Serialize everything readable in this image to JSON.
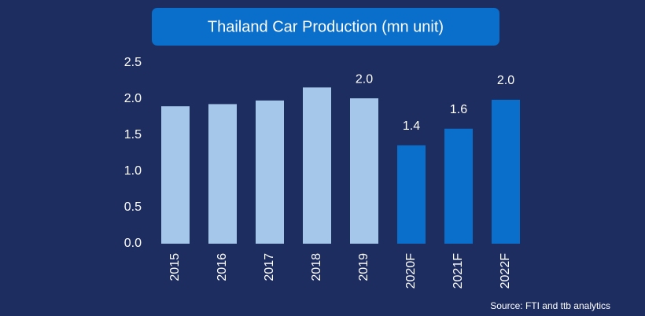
{
  "chart_data": {
    "type": "bar",
    "title": "Thailand Car Production (mn unit)",
    "categories": [
      "2015",
      "2016",
      "2017",
      "2018",
      "2019",
      "2020F",
      "2021F",
      "2022F"
    ],
    "values": [
      1.9,
      1.93,
      1.98,
      2.16,
      2.01,
      1.36,
      1.59,
      1.99
    ],
    "value_labels": [
      null,
      null,
      null,
      null,
      "2.0",
      "1.4",
      "1.6",
      "2.0"
    ],
    "colors": [
      "#a4c7ea",
      "#a4c7ea",
      "#a4c7ea",
      "#a4c7ea",
      "#a4c7ea",
      "#0a6ecb",
      "#0a6ecb",
      "#0a6ecb"
    ],
    "ylim": [
      0,
      2.5
    ],
    "yticks": [
      {
        "value": 0,
        "label": "0.0"
      },
      0.5,
      {
        "value": 1,
        "label": "1.0"
      },
      1.5,
      {
        "value": 2,
        "label": "2.0"
      },
      2.5
    ],
    "grid": false,
    "source": "Source: FTI and ttb analytics"
  }
}
